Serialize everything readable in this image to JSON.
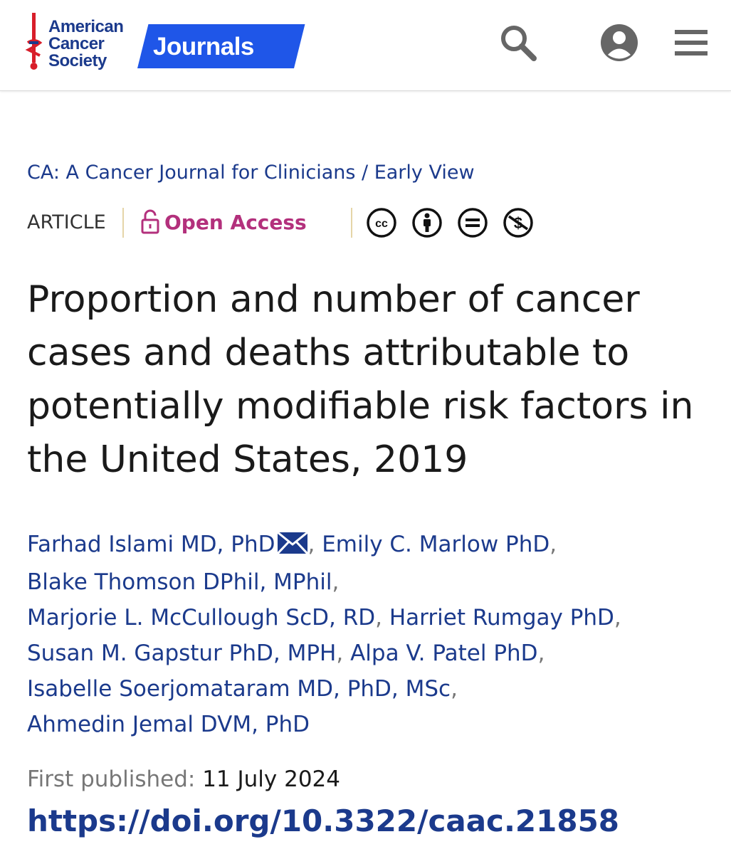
{
  "header": {
    "logo_lines": [
      "American",
      "Cancer",
      "Society"
    ],
    "journals_label": "Journals",
    "icons": [
      "search-icon",
      "account-icon",
      "menu-icon"
    ]
  },
  "breadcrumb": "CA: A Cancer Journal for Clinicians / Early View",
  "meta": {
    "article_type": "ARTICLE",
    "access_label": "Open Access",
    "license_icons": [
      "cc-icon",
      "by-icon",
      "nd-icon",
      "nc-icon"
    ]
  },
  "article": {
    "title": "Proportion and number of cancer cases and deaths attributable to potentially modifiable risk factors in the United States, 2019"
  },
  "authors": [
    "Farhad Islami MD, PhD",
    "Emily C. Marlow PhD",
    "Blake Thomson DPhil, MPhil",
    "Marjorie L. McCullough ScD, RD",
    "Harriet Rumgay PhD",
    "Susan M. Gapstur PhD, MPH",
    "Alpa V. Patel PhD",
    "Isabelle Soerjomataram MD, PhD, MSc",
    "Ahmedin Jemal DVM, PhD"
  ],
  "comma": ",",
  "published": {
    "label": "First published:",
    "date": "11 July 2024"
  },
  "doi": "https://doi.org/10.3322/caac.21858",
  "colors": {
    "brand_blue": "#1b3a8c",
    "journals_badge": "#1f56e8",
    "open_access": "#b3307c"
  }
}
